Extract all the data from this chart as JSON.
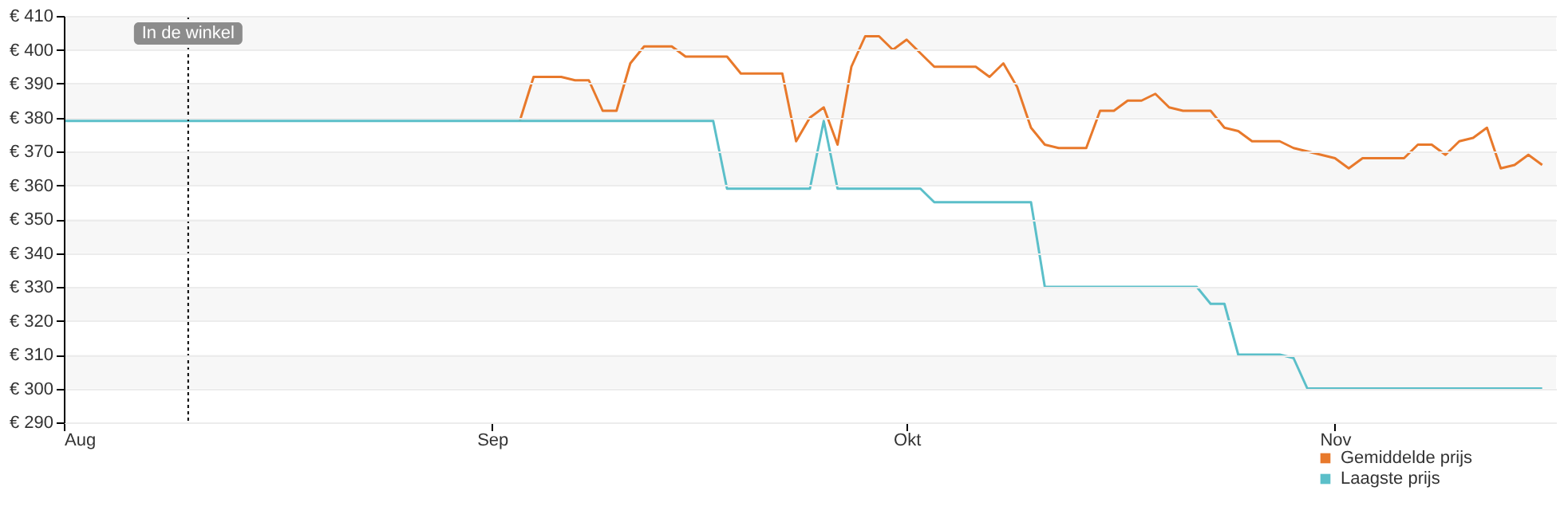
{
  "chart_data": {
    "type": "line",
    "xlim": [
      "--08-01",
      "--11-17"
    ],
    "xticks": [
      {
        "value": "--08-01",
        "label": "Aug"
      },
      {
        "value": "--09-01",
        "label": "Sep"
      },
      {
        "value": "--10-01",
        "label": "Okt"
      },
      {
        "value": "--11-01",
        "label": "Nov"
      }
    ],
    "ylim": [
      290,
      410
    ],
    "yticks": [
      {
        "value": 290,
        "label": "€ 290"
      },
      {
        "value": 300,
        "label": "€ 300"
      },
      {
        "value": 310,
        "label": "€ 310"
      },
      {
        "value": 320,
        "label": "€ 320"
      },
      {
        "value": 330,
        "label": "€ 330"
      },
      {
        "value": 340,
        "label": "€ 340"
      },
      {
        "value": 350,
        "label": "€ 350"
      },
      {
        "value": 360,
        "label": "€ 360"
      },
      {
        "value": 370,
        "label": "€ 370"
      },
      {
        "value": 380,
        "label": "€ 380"
      },
      {
        "value": 390,
        "label": "€ 390"
      },
      {
        "value": 400,
        "label": "€ 400"
      },
      {
        "value": 410,
        "label": "€ 410"
      }
    ],
    "grid": "y",
    "legend": "bottom right",
    "ref_lines": [
      {
        "axis": "x",
        "value": "--08-10",
        "label": "In de winkel",
        "line_style": "dotted",
        "color": "#000000"
      }
    ],
    "series": [
      {
        "name": "Gemiddelde prijs",
        "color": "#e8792b",
        "x": [
          "--09-03",
          "--09-04",
          "--09-06",
          "--09-07",
          "--09-08",
          "--09-09",
          "--09-10",
          "--09-11",
          "--09-12",
          "--09-14",
          "--09-15",
          "--09-18",
          "--09-19",
          "--09-20",
          "--09-22",
          "--09-23",
          "--09-24",
          "--09-25",
          "--09-26",
          "--09-27",
          "--09-28",
          "--09-29",
          "--09-30",
          "--10-01",
          "--10-03",
          "--10-06",
          "--10-07",
          "--10-08",
          "--10-09",
          "--10-10",
          "--10-11",
          "--10-12",
          "--10-14",
          "--10-15",
          "--10-16",
          "--10-17",
          "--10-18",
          "--10-19",
          "--10-20",
          "--10-21",
          "--10-23",
          "--10-24",
          "--10-25",
          "--10-26",
          "--10-28",
          "--10-29",
          "--10-30",
          "--10-31",
          "--11-01",
          "--11-02",
          "--11-03",
          "--11-04",
          "--11-06",
          "--11-07",
          "--11-08",
          "--11-09",
          "--11-10",
          "--11-11",
          "--11-12",
          "--11-13",
          "--11-14",
          "--11-15",
          "--11-16"
        ],
        "values": [
          379,
          392,
          392,
          391,
          391,
          382,
          382,
          396,
          401,
          401,
          398,
          398,
          393,
          393,
          393,
          373,
          380,
          383,
          372,
          395,
          404,
          404,
          400,
          403,
          395,
          395,
          392,
          396,
          389,
          377,
          372,
          371,
          371,
          382,
          382,
          385,
          385,
          387,
          383,
          382,
          382,
          377,
          376,
          373,
          373,
          371,
          370,
          369,
          368,
          365,
          368,
          368,
          368,
          372,
          372,
          369,
          373,
          374,
          377,
          365,
          366,
          369,
          366
        ]
      },
      {
        "name": "Laagste prijs",
        "color": "#5bbfc9",
        "x": [
          "--08-01",
          "--09-17",
          "--09-18",
          "--09-24",
          "--09-25",
          "--09-26",
          "--10-02",
          "--10-03",
          "--10-10",
          "--10-11",
          "--10-22",
          "--10-23",
          "--10-24",
          "--10-25",
          "--10-28",
          "--10-29",
          "--10-30",
          "--11-16"
        ],
        "values": [
          379,
          379,
          359,
          359,
          379,
          359,
          359,
          355,
          355,
          330,
          330,
          325,
          325,
          310,
          310,
          309,
          300,
          300
        ]
      }
    ]
  }
}
